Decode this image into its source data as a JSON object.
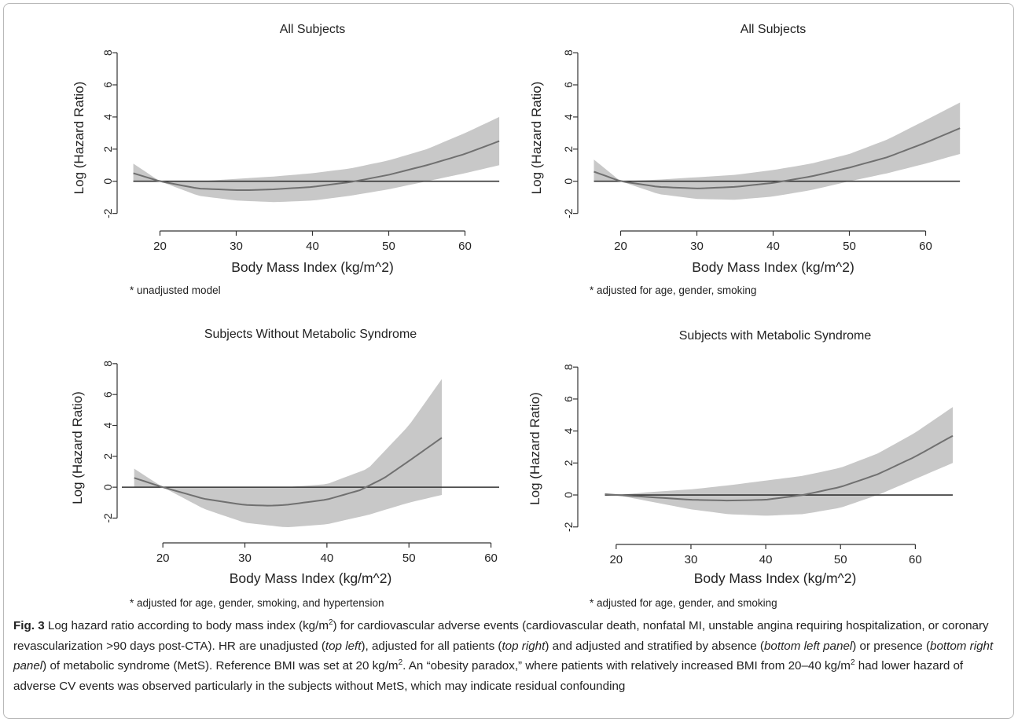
{
  "chart_data": [
    {
      "type": "line",
      "title": "All Subjects",
      "xlabel": "Body Mass Index (kg/m^2)",
      "ylabel": "Log (Hazard Ratio)",
      "note": "* unadjusted model",
      "xlim": [
        15,
        65
      ],
      "ylim": [
        -2.8,
        8.2
      ],
      "xticks": [
        20,
        30,
        40,
        50,
        60
      ],
      "yticks": [
        -2,
        0,
        2,
        4,
        6,
        8
      ],
      "reference_line_y": 0,
      "reference_line_xrange": [
        16.5,
        64.5
      ],
      "series": [
        {
          "role": "estimate",
          "x": [
            16.5,
            20,
            25,
            30,
            32,
            35,
            40,
            45,
            50,
            55,
            60,
            64.5
          ],
          "y": [
            0.5,
            0.0,
            -0.45,
            -0.55,
            -0.55,
            -0.5,
            -0.35,
            -0.05,
            0.4,
            1.0,
            1.7,
            2.5
          ]
        },
        {
          "role": "ci_upper",
          "x": [
            16.5,
            20,
            25,
            30,
            35,
            40,
            45,
            50,
            55,
            60,
            64.5
          ],
          "y": [
            1.1,
            0.0,
            0.0,
            0.15,
            0.3,
            0.5,
            0.8,
            1.3,
            2.0,
            3.0,
            4.0
          ]
        },
        {
          "role": "ci_lower",
          "x": [
            16.5,
            20,
            25,
            30,
            35,
            40,
            45,
            50,
            55,
            60,
            64.5
          ],
          "y": [
            0.0,
            0.0,
            -0.9,
            -1.2,
            -1.3,
            -1.2,
            -0.9,
            -0.5,
            0.0,
            0.5,
            1.0
          ]
        }
      ]
    },
    {
      "type": "line",
      "title": "All Subjects",
      "xlabel": "Body Mass Index (kg/m^2)",
      "ylabel": "Log (Hazard Ratio)",
      "note": "* adjusted for age, gender, smoking",
      "xlim": [
        15,
        65
      ],
      "ylim": [
        -2.8,
        8.2
      ],
      "xticks": [
        20,
        30,
        40,
        50,
        60
      ],
      "yticks": [
        -2,
        0,
        2,
        4,
        6,
        8
      ],
      "reference_line_y": 0,
      "reference_line_xrange": [
        16.5,
        64.5
      ],
      "series": [
        {
          "role": "estimate",
          "x": [
            16.5,
            20,
            25,
            30,
            35,
            40,
            45,
            50,
            55,
            60,
            64.5
          ],
          "y": [
            0.6,
            0.0,
            -0.35,
            -0.45,
            -0.35,
            -0.1,
            0.3,
            0.85,
            1.5,
            2.4,
            3.3
          ]
        },
        {
          "role": "ci_upper",
          "x": [
            16.5,
            20,
            25,
            30,
            35,
            40,
            45,
            50,
            55,
            60,
            64.5
          ],
          "y": [
            1.35,
            0.0,
            0.1,
            0.25,
            0.4,
            0.7,
            1.1,
            1.7,
            2.6,
            3.8,
            4.9
          ]
        },
        {
          "role": "ci_lower",
          "x": [
            16.5,
            20,
            25,
            30,
            35,
            40,
            45,
            50,
            55,
            60,
            64.5
          ],
          "y": [
            0.0,
            0.0,
            -0.8,
            -1.1,
            -1.15,
            -0.95,
            -0.55,
            0.0,
            0.5,
            1.1,
            1.7
          ]
        }
      ]
    },
    {
      "type": "line",
      "title": "Subjects Without Metabolic Syndrome",
      "xlabel": "Body Mass Index (kg/m^2)",
      "ylabel": "Log (Hazard Ratio)",
      "note": "* adjusted for age, gender, smoking, and hypertension",
      "xlim": [
        15,
        61
      ],
      "ylim": [
        -3.3,
        8.4
      ],
      "xticks": [
        20,
        30,
        40,
        50,
        60
      ],
      "yticks": [
        -2,
        0,
        2,
        4,
        6,
        8
      ],
      "reference_line_y": 0,
      "reference_line_xrange": [
        15,
        61
      ],
      "series": [
        {
          "role": "estimate",
          "x": [
            16.5,
            20,
            25,
            30,
            33,
            35,
            40,
            44,
            47,
            50,
            54
          ],
          "y": [
            0.6,
            0.0,
            -0.75,
            -1.15,
            -1.2,
            -1.15,
            -0.8,
            -0.2,
            0.6,
            1.7,
            3.2
          ]
        },
        {
          "role": "ci_upper",
          "x": [
            16.5,
            20,
            25,
            31,
            35,
            40,
            45,
            50,
            54
          ],
          "y": [
            1.2,
            0.0,
            0.0,
            0.0,
            0.0,
            0.2,
            1.2,
            4.0,
            7.0
          ]
        },
        {
          "role": "ci_lower",
          "x": [
            16.5,
            20,
            25,
            30,
            35,
            40,
            45,
            50,
            54
          ],
          "y": [
            0.0,
            0.0,
            -1.4,
            -2.3,
            -2.6,
            -2.4,
            -1.8,
            -1.0,
            -0.5
          ]
        }
      ]
    },
    {
      "type": "line",
      "title": "Subjects with Metabolic Syndrome",
      "xlabel": "Body Mass Index (kg/m^2)",
      "ylabel": "Log (Hazard Ratio)",
      "note": "* adjusted for age, gender, and smoking",
      "xlim": [
        15.5,
        67
      ],
      "ylim": [
        -2.8,
        8.6
      ],
      "xticks": [
        20,
        30,
        40,
        50,
        60
      ],
      "yticks": [
        -2,
        0,
        2,
        4,
        6,
        8
      ],
      "reference_line_y": 0,
      "reference_line_xrange": [
        18.5,
        65
      ],
      "series": [
        {
          "role": "estimate",
          "x": [
            18.5,
            20,
            25,
            30,
            35,
            40,
            45,
            50,
            55,
            60,
            65
          ],
          "y": [
            0.05,
            0.0,
            -0.15,
            -0.3,
            -0.35,
            -0.3,
            0.0,
            0.5,
            1.3,
            2.4,
            3.7
          ]
        },
        {
          "role": "ci_upper",
          "x": [
            18.5,
            20,
            25,
            30,
            35,
            40,
            45,
            50,
            55,
            60,
            65
          ],
          "y": [
            0.05,
            0.0,
            0.2,
            0.35,
            0.6,
            0.9,
            1.2,
            1.7,
            2.6,
            3.9,
            5.5
          ]
        },
        {
          "role": "ci_lower",
          "x": [
            18.5,
            20,
            25,
            30,
            35,
            40,
            45,
            50,
            55,
            60,
            65
          ],
          "y": [
            0.05,
            0.0,
            -0.45,
            -0.9,
            -1.2,
            -1.3,
            -1.2,
            -0.8,
            0.0,
            1.0,
            2.0
          ]
        }
      ]
    }
  ],
  "caption": {
    "lead": "Fig. 3",
    "t1": "  Log hazard ratio according to body mass index (kg/m",
    "sup1": "2",
    "t2": ") for cardiovascular adverse events (cardiovascular death, nonfatal MI, unstable angina requiring hospitalization, or coronary revascularization >90 days post-CTA). HR are unadjusted (",
    "em1": "top left",
    "t3": "), adjusted for all patients (",
    "em2": "top right",
    "t4": ") and adjusted and stratified by absence (",
    "em3": "bottom left panel",
    "t5": ") or presence (",
    "em4": "bottom right panel",
    "t6": ") of metabolic syndrome (MetS). Reference BMI was set at 20 kg/m",
    "sup2": "2",
    "t7": ". An “obesity paradox,” where patients with relatively increased BMI from 20–40 kg/m",
    "sup3": "2",
    "t8": " had lower hazard of adverse CV events was observed particularly in the subjects without MetS, which may indicate residual confounding"
  },
  "colors": {
    "band": "#c8c8c8",
    "line": "#707070",
    "axis": "#333333",
    "text": "#222222"
  }
}
